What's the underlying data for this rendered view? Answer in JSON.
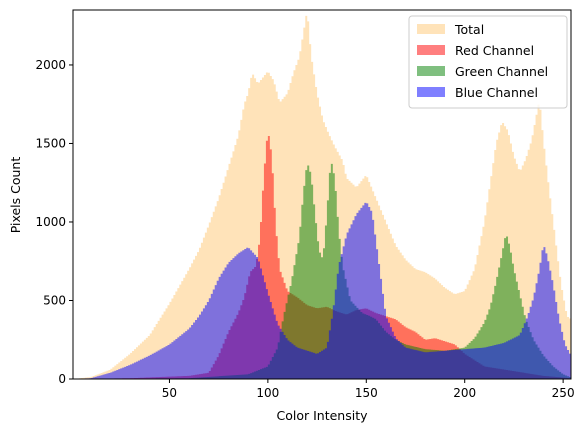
{
  "chart_data": {
    "type": "histogram",
    "title": "",
    "xlabel": "Color Intensity",
    "ylabel": "Pixels Count",
    "xlim": [
      1,
      254
    ],
    "ylim": [
      0,
      2350
    ],
    "xticks": [
      50,
      100,
      150,
      200,
      250
    ],
    "yticks": [
      0,
      500,
      1000,
      1500,
      2000
    ],
    "grid": false,
    "legend_position": "top-right",
    "series": [
      {
        "name": "Total",
        "color": "#ffdead",
        "opacity": 0.85,
        "points": [
          [
            1,
            0
          ],
          [
            10,
            12
          ],
          [
            20,
            60
          ],
          [
            30,
            160
          ],
          [
            40,
            280
          ],
          [
            50,
            480
          ],
          [
            60,
            700
          ],
          [
            65,
            820
          ],
          [
            70,
            980
          ],
          [
            75,
            1150
          ],
          [
            80,
            1350
          ],
          [
            85,
            1550
          ],
          [
            88,
            1750
          ],
          [
            90,
            1820
          ],
          [
            92,
            1950
          ],
          [
            95,
            1880
          ],
          [
            100,
            1960
          ],
          [
            103,
            1900
          ],
          [
            106,
            1760
          ],
          [
            110,
            1820
          ],
          [
            113,
            1950
          ],
          [
            116,
            2050
          ],
          [
            118,
            2200
          ],
          [
            120,
            2350
          ],
          [
            122,
            2060
          ],
          [
            125,
            1820
          ],
          [
            128,
            1650
          ],
          [
            131,
            1560
          ],
          [
            134,
            1480
          ],
          [
            138,
            1390
          ],
          [
            140,
            1280
          ],
          [
            145,
            1220
          ],
          [
            150,
            1300
          ],
          [
            155,
            1150
          ],
          [
            160,
            1000
          ],
          [
            165,
            850
          ],
          [
            170,
            760
          ],
          [
            175,
            700
          ],
          [
            180,
            680
          ],
          [
            185,
            640
          ],
          [
            190,
            580
          ],
          [
            195,
            540
          ],
          [
            200,
            560
          ],
          [
            205,
            700
          ],
          [
            210,
            1000
          ],
          [
            213,
            1250
          ],
          [
            216,
            1500
          ],
          [
            219,
            1640
          ],
          [
            222,
            1580
          ],
          [
            225,
            1420
          ],
          [
            228,
            1320
          ],
          [
            231,
            1400
          ],
          [
            234,
            1520
          ],
          [
            236,
            1650
          ],
          [
            238,
            1780
          ],
          [
            240,
            1520
          ],
          [
            243,
            1200
          ],
          [
            246,
            900
          ],
          [
            249,
            600
          ],
          [
            252,
            400
          ],
          [
            254,
            380
          ]
        ]
      },
      {
        "name": "Red Channel",
        "color": "#ff0000",
        "opacity": 0.5,
        "points": [
          [
            1,
            0
          ],
          [
            30,
            5
          ],
          [
            60,
            20
          ],
          [
            70,
            40
          ],
          [
            75,
            150
          ],
          [
            80,
            300
          ],
          [
            85,
            420
          ],
          [
            88,
            520
          ],
          [
            91,
            680
          ],
          [
            94,
            720
          ],
          [
            96,
            900
          ],
          [
            98,
            1300
          ],
          [
            100,
            1590
          ],
          [
            102,
            1420
          ],
          [
            104,
            980
          ],
          [
            106,
            700
          ],
          [
            110,
            560
          ],
          [
            115,
            520
          ],
          [
            120,
            470
          ],
          [
            125,
            450
          ],
          [
            130,
            460
          ],
          [
            135,
            430
          ],
          [
            140,
            410
          ],
          [
            145,
            440
          ],
          [
            150,
            450
          ],
          [
            155,
            420
          ],
          [
            160,
            400
          ],
          [
            165,
            380
          ],
          [
            170,
            330
          ],
          [
            175,
            300
          ],
          [
            180,
            250
          ],
          [
            185,
            260
          ],
          [
            190,
            240
          ],
          [
            195,
            220
          ],
          [
            200,
            160
          ],
          [
            210,
            80
          ],
          [
            220,
            60
          ],
          [
            230,
            40
          ],
          [
            240,
            20
          ],
          [
            254,
            5
          ]
        ]
      },
      {
        "name": "Green Channel",
        "color": "#008000",
        "opacity": 0.5,
        "points": [
          [
            1,
            0
          ],
          [
            60,
            5
          ],
          [
            90,
            30
          ],
          [
            100,
            80
          ],
          [
            105,
            200
          ],
          [
            108,
            400
          ],
          [
            112,
            620
          ],
          [
            116,
            900
          ],
          [
            118,
            1180
          ],
          [
            120,
            1380
          ],
          [
            122,
            1300
          ],
          [
            124,
            1050
          ],
          [
            126,
            820
          ],
          [
            128,
            760
          ],
          [
            130,
            1050
          ],
          [
            132,
            1400
          ],
          [
            134,
            1280
          ],
          [
            136,
            950
          ],
          [
            138,
            720
          ],
          [
            142,
            500
          ],
          [
            148,
            420
          ],
          [
            152,
            400
          ],
          [
            155,
            380
          ],
          [
            160,
            300
          ],
          [
            165,
            250
          ],
          [
            170,
            220
          ],
          [
            180,
            190
          ],
          [
            190,
            180
          ],
          [
            200,
            200
          ],
          [
            205,
            260
          ],
          [
            210,
            360
          ],
          [
            213,
            460
          ],
          [
            216,
            620
          ],
          [
            219,
            800
          ],
          [
            221,
            930
          ],
          [
            223,
            840
          ],
          [
            225,
            700
          ],
          [
            228,
            540
          ],
          [
            231,
            380
          ],
          [
            235,
            250
          ],
          [
            240,
            150
          ],
          [
            245,
            80
          ],
          [
            250,
            30
          ],
          [
            254,
            10
          ]
        ]
      },
      {
        "name": "Blue Channel",
        "color": "#0000ff",
        "opacity": 0.5,
        "points": [
          [
            1,
            0
          ],
          [
            10,
            5
          ],
          [
            20,
            40
          ],
          [
            30,
            90
          ],
          [
            40,
            150
          ],
          [
            50,
            220
          ],
          [
            60,
            320
          ],
          [
            65,
            400
          ],
          [
            70,
            500
          ],
          [
            75,
            640
          ],
          [
            80,
            740
          ],
          [
            85,
            800
          ],
          [
            90,
            840
          ],
          [
            95,
            770
          ],
          [
            100,
            550
          ],
          [
            105,
            350
          ],
          [
            110,
            250
          ],
          [
            115,
            200
          ],
          [
            120,
            180
          ],
          [
            125,
            160
          ],
          [
            130,
            200
          ],
          [
            133,
            420
          ],
          [
            136,
            720
          ],
          [
            140,
            920
          ],
          [
            145,
            1050
          ],
          [
            150,
            1130
          ],
          [
            153,
            1060
          ],
          [
            156,
            780
          ],
          [
            160,
            400
          ],
          [
            165,
            260
          ],
          [
            170,
            200
          ],
          [
            180,
            170
          ],
          [
            190,
            180
          ],
          [
            200,
            190
          ],
          [
            210,
            200
          ],
          [
            220,
            230
          ],
          [
            228,
            280
          ],
          [
            232,
            400
          ],
          [
            235,
            520
          ],
          [
            238,
            700
          ],
          [
            240,
            860
          ],
          [
            242,
            780
          ],
          [
            245,
            600
          ],
          [
            248,
            380
          ],
          [
            251,
            220
          ],
          [
            254,
            150
          ]
        ]
      }
    ]
  }
}
